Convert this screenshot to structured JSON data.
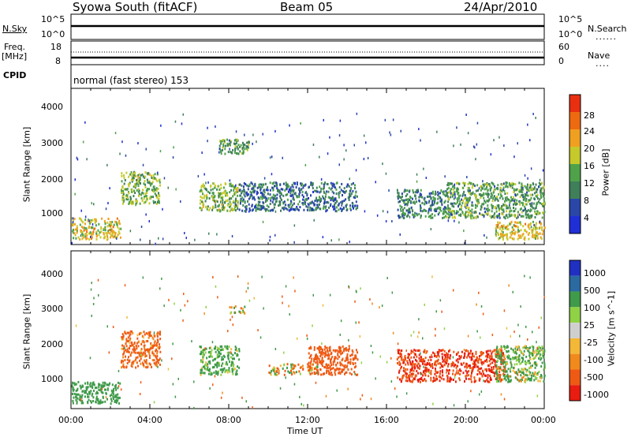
{
  "header": {
    "title": "Syowa South (fitACF)",
    "beam": "Beam 05",
    "date": "24/Apr/2010"
  },
  "strips": {
    "nsky_label": "N.Sky",
    "nsky_ticks": [
      "10^5",
      "10^0"
    ],
    "nsearch_label": "N.Search",
    "nsearch_ticks": [
      "10^5",
      "10^0"
    ],
    "freq_label": "Freq.",
    "freq_unit": "[MHz]",
    "freq_ticks": [
      "18",
      "8"
    ],
    "nave_label": "Nave",
    "nave_ticks": [
      "60",
      "0"
    ],
    "cpid_label": "CPID",
    "cpid_value": "normal (fast stereo) 153"
  },
  "colors": {
    "power_scale": [
      "#1f2fd6",
      "#2a47a8",
      "#3f7f5a",
      "#4fa24a",
      "#c6c92a",
      "#f0a020",
      "#ee6a10",
      "#e83010"
    ],
    "velocity_scale": [
      "#e81c10",
      "#ee5a14",
      "#f08a1c",
      "#f3b838",
      "#cfcfcf",
      "#8fd245",
      "#3f9a4a",
      "#2a6aa0",
      "#2030c0"
    ]
  },
  "chart_data": [
    {
      "type": "heatmap",
      "name_in_figure": "Power",
      "ylabel": "Slant Range [km]",
      "ylim": [
        180,
        4500
      ],
      "yticks": [
        "4000",
        "3000",
        "2000",
        "1000"
      ],
      "xlim": [
        "00:00",
        "24:00"
      ],
      "xticks": [
        "00:00",
        "04:00",
        "08:00",
        "12:00",
        "16:00",
        "20:00",
        "00:00"
      ],
      "colorbar_label": "Power [dB]",
      "colorbar_ticks": [
        "28",
        "24",
        "20",
        "16",
        "12",
        "8",
        "4"
      ],
      "colorbar_range": [
        0,
        30
      ],
      "regions": [
        {
          "hour_start": 0.0,
          "hour_end": 2.5,
          "range_start": 300,
          "range_end": 900,
          "value": 18
        },
        {
          "hour_start": 2.5,
          "hour_end": 4.5,
          "range_start": 1300,
          "range_end": 2200,
          "value": 14
        },
        {
          "hour_start": 6.5,
          "hour_end": 8.5,
          "range_start": 1100,
          "range_end": 1900,
          "value": 14
        },
        {
          "hour_start": 7.5,
          "hour_end": 9.0,
          "range_start": 2700,
          "range_end": 3100,
          "value": 12
        },
        {
          "hour_start": 8.5,
          "hour_end": 14.5,
          "range_start": 1100,
          "range_end": 1900,
          "value": 8
        },
        {
          "hour_start": 16.5,
          "hour_end": 19.0,
          "range_start": 900,
          "range_end": 1700,
          "value": 10
        },
        {
          "hour_start": 19.0,
          "hour_end": 24.0,
          "range_start": 900,
          "range_end": 1900,
          "value": 12
        },
        {
          "hour_start": 21.5,
          "hour_end": 24.0,
          "range_start": 300,
          "range_end": 800,
          "value": 18
        }
      ]
    },
    {
      "type": "heatmap",
      "name_in_figure": "Velocity",
      "ylabel": "Slant Range [km]",
      "ylim": [
        180,
        4500
      ],
      "yticks": [
        "4000",
        "3000",
        "2000",
        "1000"
      ],
      "xlim": [
        "00:00",
        "24:00"
      ],
      "xticks": [
        "00:00",
        "04:00",
        "08:00",
        "12:00",
        "16:00",
        "20:00",
        "00:00"
      ],
      "xlabel": "Time UT",
      "colorbar_label": "Velocity [m s^-1]",
      "colorbar_ticks": [
        "1000",
        "500",
        "100",
        "25",
        "-25",
        "-100",
        "-500",
        "-1000"
      ],
      "colorbar_range": [
        -1000,
        1000
      ],
      "regions": [
        {
          "hour_start": 0.0,
          "hour_end": 2.5,
          "range_start": 300,
          "range_end": 900,
          "value": 300
        },
        {
          "hour_start": 2.5,
          "hour_end": 4.5,
          "range_start": 1300,
          "range_end": 2300,
          "value": -200
        },
        {
          "hour_start": 6.5,
          "hour_end": 8.5,
          "range_start": 1100,
          "range_end": 1900,
          "value": 200
        },
        {
          "hour_start": 8.0,
          "hour_end": 8.8,
          "range_start": 2800,
          "range_end": 3000,
          "value": 0
        },
        {
          "hour_start": 10.0,
          "hour_end": 12.5,
          "range_start": 1100,
          "range_end": 1400,
          "value": 0
        },
        {
          "hour_start": 12.0,
          "hour_end": 14.5,
          "range_start": 1100,
          "range_end": 1900,
          "value": -300
        },
        {
          "hour_start": 16.5,
          "hour_end": 22.0,
          "range_start": 900,
          "range_end": 1800,
          "value": -500
        },
        {
          "hour_start": 21.5,
          "hour_end": 24.0,
          "range_start": 900,
          "range_end": 1900,
          "value": 150
        }
      ]
    }
  ]
}
